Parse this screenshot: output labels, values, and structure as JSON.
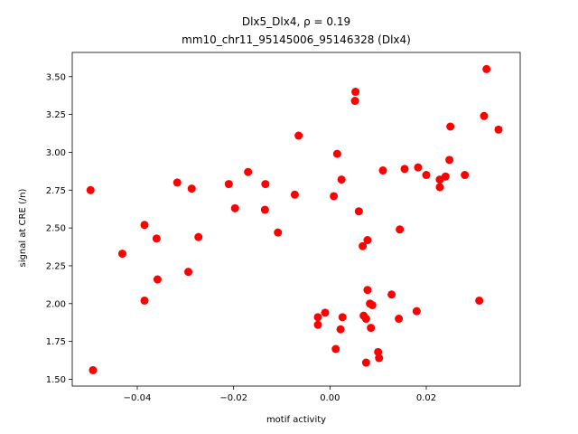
{
  "chart_data": {
    "type": "scatter",
    "title_line1": "Dlx5_Dlx4, ρ = 0.19",
    "title_line2": "mm10_chr11_95145006_95146328 (Dlx4)",
    "xlabel": "motif activity",
    "ylabel": "signal at CRE (/n)",
    "xlim": [
      -0.0535,
      0.0395
    ],
    "ylim": [
      1.455,
      3.66
    ],
    "xticks": [
      -0.04,
      -0.02,
      0.0,
      0.02
    ],
    "xtick_labels": [
      "−0.04",
      "−0.02",
      "0.00",
      "0.02"
    ],
    "yticks": [
      1.5,
      1.75,
      2.0,
      2.25,
      2.5,
      2.75,
      3.0,
      3.25,
      3.5
    ],
    "ytick_labels": [
      "1.50",
      "1.75",
      "2.00",
      "2.25",
      "2.50",
      "2.75",
      "3.00",
      "3.25",
      "3.50"
    ],
    "marker_color": "#ff0000",
    "grid": false,
    "points": [
      {
        "x": -0.0497,
        "y": 2.75
      },
      {
        "x": -0.0492,
        "y": 1.56
      },
      {
        "x": -0.0431,
        "y": 2.33
      },
      {
        "x": -0.0385,
        "y": 2.52
      },
      {
        "x": -0.0385,
        "y": 2.02
      },
      {
        "x": -0.036,
        "y": 2.43
      },
      {
        "x": -0.0358,
        "y": 2.16
      },
      {
        "x": -0.0317,
        "y": 2.8
      },
      {
        "x": -0.0294,
        "y": 2.21
      },
      {
        "x": -0.0287,
        "y": 2.76
      },
      {
        "x": -0.0273,
        "y": 2.44
      },
      {
        "x": -0.021,
        "y": 2.79
      },
      {
        "x": -0.0197,
        "y": 2.63
      },
      {
        "x": -0.017,
        "y": 2.87
      },
      {
        "x": -0.0134,
        "y": 2.79
      },
      {
        "x": -0.0135,
        "y": 2.62
      },
      {
        "x": -0.0108,
        "y": 2.47
      },
      {
        "x": -0.0073,
        "y": 2.72
      },
      {
        "x": -0.0065,
        "y": 3.11
      },
      {
        "x": -0.0025,
        "y": 1.91
      },
      {
        "x": -0.0025,
        "y": 1.86
      },
      {
        "x": -0.001,
        "y": 1.94
      },
      {
        "x": 0.0008,
        "y": 2.71
      },
      {
        "x": 0.0012,
        "y": 1.7
      },
      {
        "x": 0.0015,
        "y": 2.99
      },
      {
        "x": 0.0022,
        "y": 1.83
      },
      {
        "x": 0.0024,
        "y": 2.82
      },
      {
        "x": 0.0026,
        "y": 1.91
      },
      {
        "x": 0.0052,
        "y": 3.34
      },
      {
        "x": 0.0053,
        "y": 3.4
      },
      {
        "x": 0.006,
        "y": 2.61
      },
      {
        "x": 0.0068,
        "y": 2.38
      },
      {
        "x": 0.007,
        "y": 1.92
      },
      {
        "x": 0.0075,
        "y": 1.9
      },
      {
        "x": 0.0075,
        "y": 1.61
      },
      {
        "x": 0.0078,
        "y": 2.42
      },
      {
        "x": 0.0078,
        "y": 2.09
      },
      {
        "x": 0.0083,
        "y": 2.0
      },
      {
        "x": 0.0085,
        "y": 1.84
      },
      {
        "x": 0.0088,
        "y": 1.99
      },
      {
        "x": 0.01,
        "y": 1.68
      },
      {
        "x": 0.0102,
        "y": 1.64
      },
      {
        "x": 0.011,
        "y": 2.88
      },
      {
        "x": 0.0128,
        "y": 2.06
      },
      {
        "x": 0.0143,
        "y": 1.9
      },
      {
        "x": 0.0145,
        "y": 2.49
      },
      {
        "x": 0.0155,
        "y": 2.89
      },
      {
        "x": 0.018,
        "y": 1.95
      },
      {
        "x": 0.0183,
        "y": 2.9
      },
      {
        "x": 0.02,
        "y": 2.85
      },
      {
        "x": 0.0228,
        "y": 2.82
      },
      {
        "x": 0.0228,
        "y": 2.77
      },
      {
        "x": 0.024,
        "y": 2.84
      },
      {
        "x": 0.0248,
        "y": 2.95
      },
      {
        "x": 0.025,
        "y": 3.17
      },
      {
        "x": 0.028,
        "y": 2.85
      },
      {
        "x": 0.031,
        "y": 2.02
      },
      {
        "x": 0.032,
        "y": 3.24
      },
      {
        "x": 0.0325,
        "y": 3.55
      },
      {
        "x": 0.035,
        "y": 3.15
      }
    ]
  }
}
